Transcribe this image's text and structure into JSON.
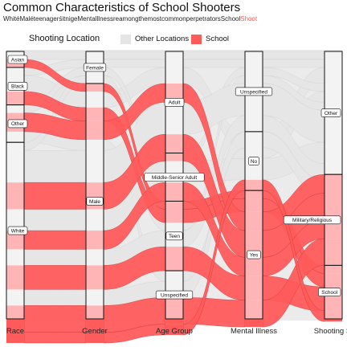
{
  "chart_data": {
    "type": "alluvial",
    "title": "Common Characteristics of School Shooters",
    "subtitle_parts": [
      {
        "text": "WhitéMaléteenagerśitnigeMentalllnessreamongthemostcommonperpetratorsSchool",
        "accent": false
      },
      {
        "text": "Shoot",
        "accent": true
      }
    ],
    "legend": {
      "title": "Shooting Location",
      "entries": [
        {
          "label": "Other Locations",
          "color": "#e5e5e5"
        },
        {
          "label": "School",
          "color": "#ff5b5b"
        }
      ]
    },
    "axes": [
      "Race",
      "Gender",
      "Age Group",
      "Mental Illness",
      "Shooting Si"
    ],
    "strata": [
      {
        "axis": 0,
        "label": "Asian",
        "value": 6
      },
      {
        "axis": 0,
        "label": "Black",
        "value": 14
      },
      {
        "axis": 0,
        "label": "Other",
        "value": 14
      },
      {
        "axis": 0,
        "label": "White",
        "value": 66
      },
      {
        "axis": 1,
        "label": "Female",
        "value": 12
      },
      {
        "axis": 1,
        "label": "Male",
        "value": 88
      },
      {
        "axis": 2,
        "label": "Adult",
        "value": 38
      },
      {
        "axis": 2,
        "label": "Middle-Senior Adult",
        "value": 18
      },
      {
        "axis": 2,
        "label": "Teen",
        "value": 26
      },
      {
        "axis": 2,
        "label": "Unspecified",
        "value": 18
      },
      {
        "axis": 3,
        "label": "Unspecified",
        "value": 30
      },
      {
        "axis": 3,
        "label": "No",
        "value": 22
      },
      {
        "axis": 3,
        "label": "Yes",
        "value": 48
      },
      {
        "axis": 4,
        "label": "Other",
        "value": 46
      },
      {
        "axis": 4,
        "label": "Military/Religious",
        "value": 34
      },
      {
        "axis": 4,
        "label": "School",
        "value": 20
      }
    ],
    "flows": [
      {
        "path": [
          "Asian",
          "Female",
          "Adult",
          "Unspecified",
          "Other"
        ],
        "value": 3,
        "school": false
      },
      {
        "path": [
          "Asian",
          "Male",
          "Teen",
          "Yes",
          "School"
        ],
        "value": 3,
        "school": true
      },
      {
        "path": [
          "Black",
          "Female",
          "Adult",
          "Unspecified",
          "Other"
        ],
        "value": 3,
        "school": false
      },
      {
        "path": [
          "Black",
          "Male",
          "Adult",
          "No",
          "Other"
        ],
        "value": 6,
        "school": false
      },
      {
        "path": [
          "Black",
          "Male",
          "Teen",
          "Yes",
          "School"
        ],
        "value": 5,
        "school": true
      },
      {
        "path": [
          "Other",
          "Female",
          "Middle-Senior Adult",
          "Unspecified",
          "Other"
        ],
        "value": 3,
        "school": false
      },
      {
        "path": [
          "Other",
          "Male",
          "Adult",
          "Yes",
          "Military/Religious"
        ],
        "value": 7,
        "school": true
      },
      {
        "path": [
          "Other",
          "Male",
          "Unspecified",
          "No",
          "Other"
        ],
        "value": 4,
        "school": false
      },
      {
        "path": [
          "White",
          "Female",
          "Teen",
          "Unspecified",
          "Other"
        ],
        "value": 3,
        "school": false
      },
      {
        "path": [
          "White",
          "Male",
          "Adult",
          "Unspecified",
          "Other"
        ],
        "value": 12,
        "school": false
      },
      {
        "path": [
          "White",
          "Male",
          "Adult",
          "Yes",
          "Military/Religious"
        ],
        "value": 10,
        "school": true
      },
      {
        "path": [
          "White",
          "Male",
          "Middle-Senior Adult",
          "No",
          "Other"
        ],
        "value": 8,
        "school": false
      },
      {
        "path": [
          "White",
          "Male",
          "Middle-Senior Adult",
          "Yes",
          "Military/Religious"
        ],
        "value": 7,
        "school": true
      },
      {
        "path": [
          "White",
          "Male",
          "Teen",
          "Unspecified",
          "Other"
        ],
        "value": 6,
        "school": false
      },
      {
        "path": [
          "White",
          "Male",
          "Teen",
          "Yes",
          "School"
        ],
        "value": 9,
        "school": true
      },
      {
        "path": [
          "White",
          "Male",
          "Unspecified",
          "Unspecified",
          "Other"
        ],
        "value": 6,
        "school": false
      },
      {
        "path": [
          "White",
          "Male",
          "Unspecified",
          "Yes",
          "Military/Religious"
        ],
        "value": 10,
        "school": true
      },
      {
        "path": [
          "White",
          "Male",
          "Unspecified",
          "No",
          "School"
        ],
        "value": 4,
        "school": true
      }
    ]
  },
  "colors": {
    "school": "#ff5b5b",
    "other": "#e5e5e5",
    "panel": "#ebebeb"
  }
}
